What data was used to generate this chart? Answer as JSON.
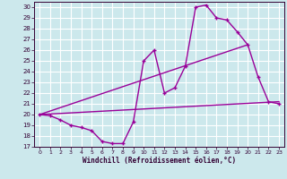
{
  "xlabel": "Windchill (Refroidissement éolien,°C)",
  "bg_color": "#cce8ec",
  "line_color": "#990099",
  "grid_color": "#ffffff",
  "xlim": [
    -0.5,
    23.5
  ],
  "ylim": [
    17,
    30.5
  ],
  "yticks": [
    17,
    18,
    19,
    20,
    21,
    22,
    23,
    24,
    25,
    26,
    27,
    28,
    29,
    30
  ],
  "xticks": [
    0,
    1,
    2,
    3,
    4,
    5,
    6,
    7,
    8,
    9,
    10,
    11,
    12,
    13,
    14,
    15,
    16,
    17,
    18,
    19,
    20,
    21,
    22,
    23
  ],
  "line1_x": [
    0,
    1,
    2,
    3,
    4,
    5,
    6,
    7,
    8,
    9,
    10,
    11,
    12,
    13,
    14,
    15,
    16,
    17,
    18,
    19,
    20,
    21,
    22,
    23
  ],
  "line1_y": [
    20.0,
    19.9,
    19.5,
    19.0,
    18.8,
    18.5,
    17.5,
    17.3,
    17.3,
    19.3,
    25.0,
    26.0,
    22.0,
    22.5,
    24.5,
    30.0,
    30.2,
    29.0,
    28.8,
    27.7,
    26.5,
    23.5,
    21.2,
    21.0
  ],
  "line2_x": [
    0,
    20
  ],
  "line2_y": [
    20.0,
    26.5
  ],
  "line3_x": [
    0,
    23
  ],
  "line3_y": [
    20.0,
    21.2
  ],
  "line_linewidth": 1.0,
  "marker": "+"
}
